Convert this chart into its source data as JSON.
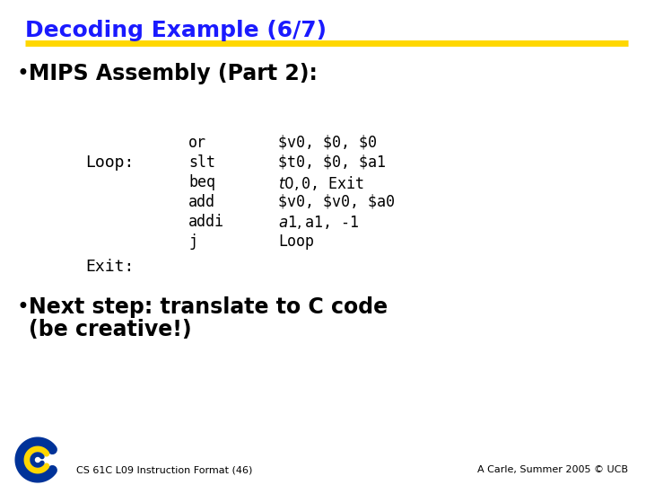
{
  "title": "Decoding Example (6/7)",
  "title_color": "#1a1aff",
  "title_fontsize": 18,
  "separator_color": "#FFD700",
  "bg_color": "#FFFFFF",
  "bullet1": "MIPS Assembly (Part 2):",
  "bullet1_fontsize": 17,
  "bullet1_color": "#000000",
  "loop_label": "Loop:",
  "exit_label": "Exit:",
  "label_fontsize": 13,
  "label_color": "#000000",
  "instructions": [
    "or",
    "slt",
    "beq",
    "add",
    "addi",
    "j"
  ],
  "operands": [
    "$v0, $0, $0",
    "$t0, $0, $a1",
    "$t0, $0, Exit",
    "$v0, $v0, $a0",
    "$a1, $a1, -1",
    "Loop"
  ],
  "code_fontsize": 12,
  "code_color": "#000000",
  "bullet2_line1": "Next step: translate to C code",
  "bullet2_line2": "(be creative!)",
  "bullet2_fontsize": 17,
  "bullet2_color": "#000000",
  "footer_left": "CS 61C L09 Instruction Format (46)",
  "footer_right": "A Carle, Summer 2005 © UCB",
  "footer_fontsize": 8,
  "footer_color": "#000000",
  "logo_blue": "#003399",
  "logo_gold": "#FFD700"
}
